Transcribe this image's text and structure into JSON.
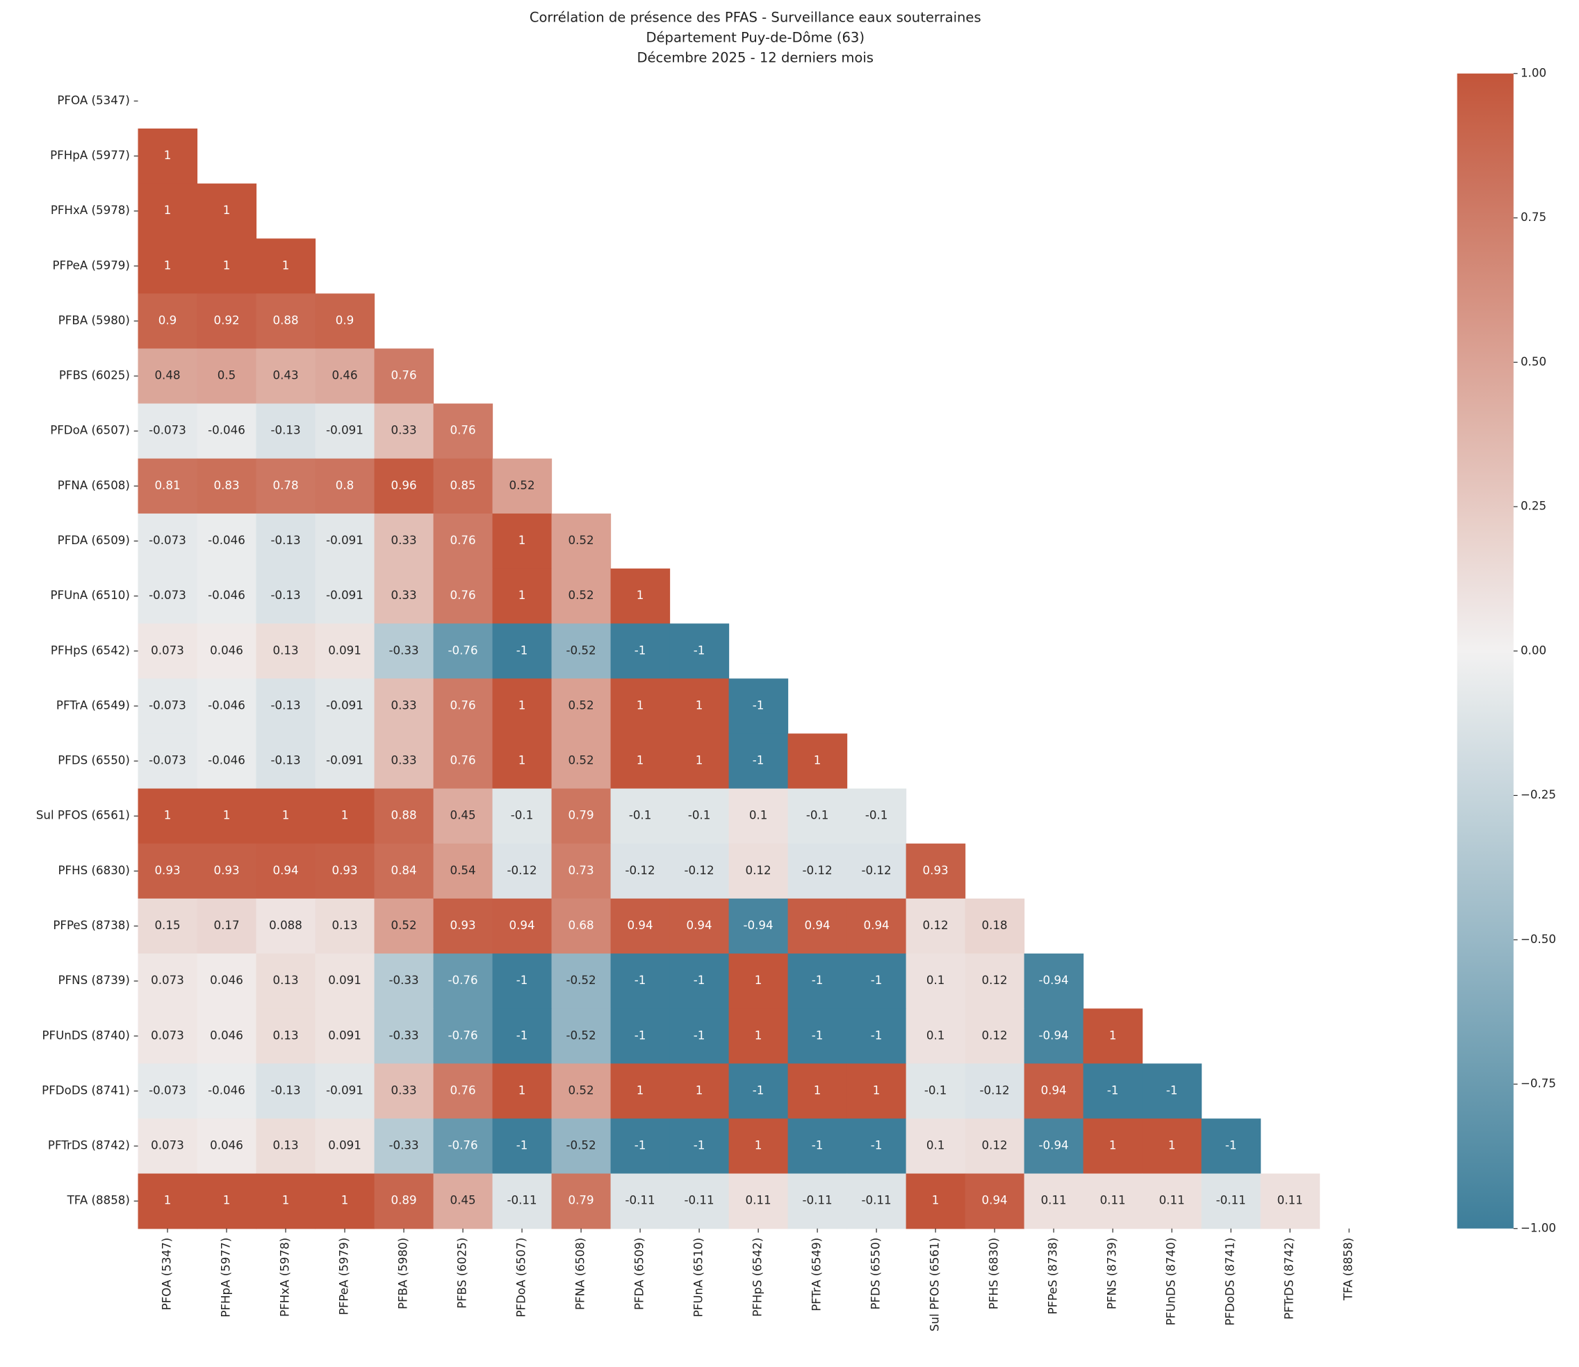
{
  "chart_data": {
    "type": "heatmap",
    "title": [
      "Corrélation de présence des PFAS - Surveillance eaux souterraines",
      "Département Puy-de-Dôme (63)",
      "Décembre 2025 - 12 derniers mois"
    ],
    "categories": [
      "PFOA (5347)",
      "PFHpA (5977)",
      "PFHxA (5978)",
      "PFPeA (5979)",
      "PFBA (5980)",
      "PFBS (6025)",
      "PFDoA (6507)",
      "PFNA (6508)",
      "PFDA (6509)",
      "PFUnA (6510)",
      "PFHpS (6542)",
      "PFTrA (6549)",
      "PFDS (6550)",
      "Sul PFOS (6561)",
      "PFHS (6830)",
      "PFPeS (8738)",
      "PFNS (8739)",
      "PFUnDS (8740)",
      "PFDoDS (8741)",
      "PFTrDS (8742)",
      "TFA (8858)"
    ],
    "values": [
      [],
      [
        1
      ],
      [
        1,
        1
      ],
      [
        1,
        1,
        1
      ],
      [
        0.9,
        0.92,
        0.88,
        0.9
      ],
      [
        0.48,
        0.5,
        0.43,
        0.46,
        0.76
      ],
      [
        -0.073,
        -0.046,
        -0.13,
        -0.091,
        0.33,
        0.76
      ],
      [
        0.81,
        0.83,
        0.78,
        0.8,
        0.96,
        0.85,
        0.52
      ],
      [
        -0.073,
        -0.046,
        -0.13,
        -0.091,
        0.33,
        0.76,
        1,
        0.52
      ],
      [
        -0.073,
        -0.046,
        -0.13,
        -0.091,
        0.33,
        0.76,
        1,
        0.52,
        1
      ],
      [
        0.073,
        0.046,
        0.13,
        0.091,
        -0.33,
        -0.76,
        -1,
        -0.52,
        -1,
        -1
      ],
      [
        -0.073,
        -0.046,
        -0.13,
        -0.091,
        0.33,
        0.76,
        1,
        0.52,
        1,
        1,
        -1
      ],
      [
        -0.073,
        -0.046,
        -0.13,
        -0.091,
        0.33,
        0.76,
        1,
        0.52,
        1,
        1,
        -1,
        1
      ],
      [
        1,
        1,
        1,
        1,
        0.88,
        0.45,
        -0.1,
        0.79,
        -0.1,
        -0.1,
        0.1,
        -0.1,
        -0.1
      ],
      [
        0.93,
        0.93,
        0.94,
        0.93,
        0.84,
        0.54,
        -0.12,
        0.73,
        -0.12,
        -0.12,
        0.12,
        -0.12,
        -0.12,
        0.93
      ],
      [
        0.15,
        0.17,
        0.088,
        0.13,
        0.52,
        0.93,
        0.94,
        0.68,
        0.94,
        0.94,
        -0.94,
        0.94,
        0.94,
        0.12,
        0.18
      ],
      [
        0.073,
        0.046,
        0.13,
        0.091,
        -0.33,
        -0.76,
        -1,
        -0.52,
        -1,
        -1,
        1,
        -1,
        -1,
        0.1,
        0.12,
        -0.94
      ],
      [
        0.073,
        0.046,
        0.13,
        0.091,
        -0.33,
        -0.76,
        -1,
        -0.52,
        -1,
        -1,
        1,
        -1,
        -1,
        0.1,
        0.12,
        -0.94,
        1
      ],
      [
        -0.073,
        -0.046,
        -0.13,
        -0.091,
        0.33,
        0.76,
        1,
        0.52,
        1,
        1,
        -1,
        1,
        1,
        -0.1,
        -0.12,
        0.94,
        -1,
        -1
      ],
      [
        0.073,
        0.046,
        0.13,
        0.091,
        -0.33,
        -0.76,
        -1,
        -0.52,
        -1,
        -1,
        1,
        -1,
        -1,
        0.1,
        0.12,
        -0.94,
        1,
        1,
        -1
      ],
      [
        1,
        1,
        1,
        1,
        0.89,
        0.45,
        -0.11,
        0.79,
        -0.11,
        -0.11,
        0.11,
        -0.11,
        -0.11,
        1,
        0.94,
        0.11,
        0.11,
        0.11,
        -0.11,
        0.11
      ]
    ],
    "colormap": [
      "#3d7e9a",
      "#f2f1f1",
      "#c3553a"
    ],
    "clim": [
      -1,
      1
    ],
    "cticks": [
      {
        "value": 1,
        "label": "1.00"
      },
      {
        "value": 0.75,
        "label": "0.75"
      },
      {
        "value": 0.5,
        "label": "0.50"
      },
      {
        "value": 0.25,
        "label": "0.25"
      },
      {
        "value": 0,
        "label": "0.00"
      },
      {
        "value": -0.25,
        "label": "−0.25"
      },
      {
        "value": -0.5,
        "label": "−0.50"
      },
      {
        "value": -0.75,
        "label": "−0.75"
      },
      {
        "value": -1,
        "label": "−1.00"
      }
    ]
  }
}
